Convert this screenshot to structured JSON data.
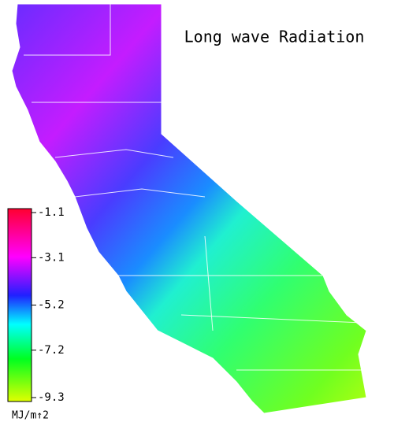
{
  "title": "Long wave Radiation",
  "colorbar": {
    "ticks": [
      -1.1,
      -3.1,
      -5.2,
      -7.2,
      -9.3
    ],
    "range": [
      -1.1,
      -9.3
    ],
    "unit": "MJ/m↑2"
  }
}
